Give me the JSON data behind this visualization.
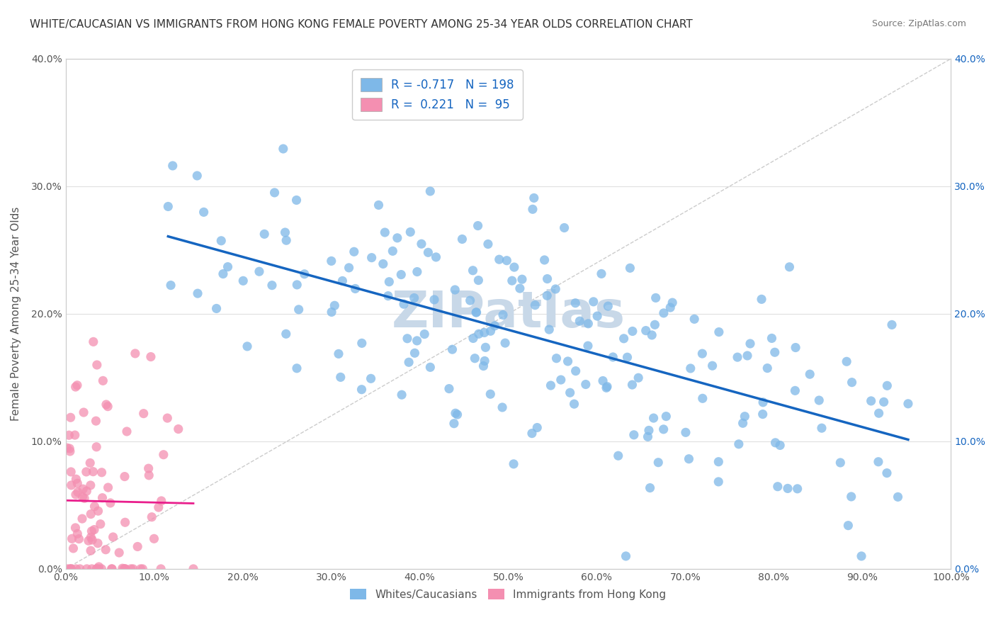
{
  "title": "WHITE/CAUCASIAN VS IMMIGRANTS FROM HONG KONG FEMALE POVERTY AMONG 25-34 YEAR OLDS CORRELATION CHART",
  "source": "Source: ZipAtlas.com",
  "ylabel": "Female Poverty Among 25-34 Year Olds",
  "xlabel": "",
  "xlim": [
    0,
    1.0
  ],
  "ylim": [
    0,
    0.4
  ],
  "xticks": [
    0,
    0.1,
    0.2,
    0.3,
    0.4,
    0.5,
    0.6,
    0.7,
    0.8,
    0.9,
    1.0
  ],
  "xtick_labels": [
    "0.0%",
    "10.0%",
    "20.0%",
    "30.0%",
    "40.0%",
    "50.0%",
    "60.0%",
    "70.0%",
    "80.0%",
    "90.0%",
    "100.0%"
  ],
  "yticks": [
    0,
    0.1,
    0.2,
    0.3,
    0.4
  ],
  "ytick_labels": [
    "0.0%",
    "10.0%",
    "20.0%",
    "30.0%",
    "40.0%"
  ],
  "blue_R": -0.717,
  "blue_N": 198,
  "pink_R": 0.221,
  "pink_N": 95,
  "blue_color": "#7eb8e8",
  "pink_color": "#f48fb1",
  "blue_line_color": "#1565c0",
  "pink_line_color": "#e91e8c",
  "watermark": "ZIPatlas",
  "watermark_color": "#c8d8e8",
  "legend_R_color": "#1565c0",
  "legend_N_color": "#e53935",
  "background_color": "#ffffff",
  "grid_color": "#e0e0e0",
  "blue_seed": 42,
  "pink_seed": 123,
  "title_fontsize": 11,
  "axis_label_fontsize": 11,
  "tick_fontsize": 10,
  "right_ytick_color": "#1565c0"
}
